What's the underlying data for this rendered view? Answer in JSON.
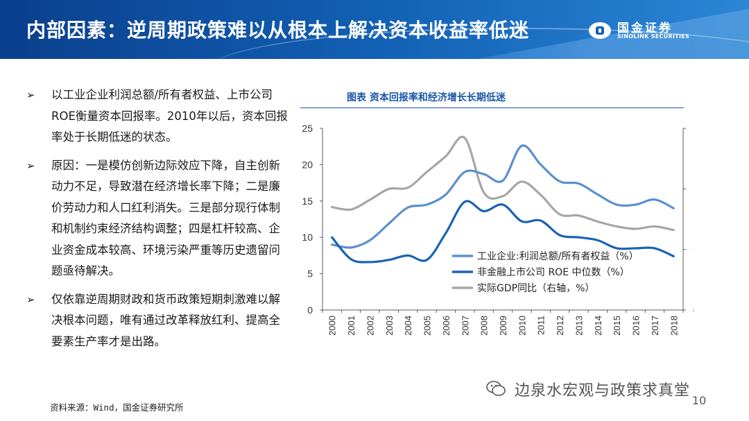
{
  "slide": {
    "title": "内部因素：逆周期政策难以从根本上解决资本收益率低迷",
    "logo_cn": "国金证券",
    "logo_en": "SINOLINK SECURITIES",
    "page_number": "10",
    "watermark": "边泉水宏观与政策求真堂",
    "source": "资料来源：Wind，国金证券研究所"
  },
  "bullets": [
    {
      "marker": "➢",
      "text": "以工业企业利润总额/所有者权益、上市公司ROE衡量资本回报率。2010年以后，资本回报率处于长期低迷的状态。"
    },
    {
      "marker": "➢",
      "text": "原因：一是模仿创新边际效应下降，自主创新动力不足，导致潜在经济增长率下降；二是廉价劳动力和人口红利消失。三是部分现行体制和机制约束经济结构调整；四是杠杆较高、企业资金成本较高、环境污染严重等历史遗留问题亟待解决。"
    },
    {
      "marker": "➢",
      "text": "仅依靠逆周期财政和货币政策短期刺激难以解决根本问题，唯有通过改革释放红利、提高全要素生产率才是出路。"
    }
  ],
  "chart_data": {
    "type": "line",
    "title": "图表  资本回报率和经济增长长期低迷",
    "x": [
      2000,
      2001,
      2002,
      2003,
      2004,
      2005,
      2006,
      2007,
      2008,
      2009,
      2010,
      2011,
      2012,
      2013,
      2014,
      2015,
      2016,
      2017,
      2018
    ],
    "y_left": {
      "min": 0,
      "max": 25,
      "ticks": [
        0,
        5,
        10,
        15,
        20,
        25
      ]
    },
    "y_right": {
      "min": 0,
      "max": 15,
      "ticks": [
        0,
        5,
        10,
        15
      ]
    },
    "legend_position": "lower-right inside plot",
    "series": [
      {
        "name": "工业企业:利润总额/所有者权益（%）",
        "axis": "left",
        "color": "#5b8fd0",
        "values": [
          9.0,
          8.6,
          9.6,
          11.9,
          14.1,
          14.5,
          15.9,
          19.0,
          18.7,
          17.8,
          22.6,
          20.0,
          17.7,
          17.4,
          15.9,
          14.5,
          14.5,
          15.2,
          14.0
        ]
      },
      {
        "name": "非金融上市公司 ROE 中位数（%）",
        "axis": "left",
        "color": "#1a62b6",
        "values": [
          10.0,
          7.0,
          6.6,
          6.9,
          7.5,
          6.9,
          10.6,
          14.9,
          13.6,
          14.5,
          12.2,
          12.3,
          10.3,
          10.0,
          9.6,
          8.5,
          8.5,
          8.5,
          7.4
        ]
      },
      {
        "name": "实际GDP同比（右轴，%）",
        "axis": "right",
        "color": "#a6a6a6",
        "values": [
          8.5,
          8.3,
          9.1,
          10.0,
          10.1,
          11.4,
          12.7,
          14.2,
          9.7,
          9.4,
          10.6,
          9.5,
          7.9,
          7.8,
          7.3,
          6.9,
          6.7,
          6.9,
          6.6
        ]
      }
    ]
  }
}
